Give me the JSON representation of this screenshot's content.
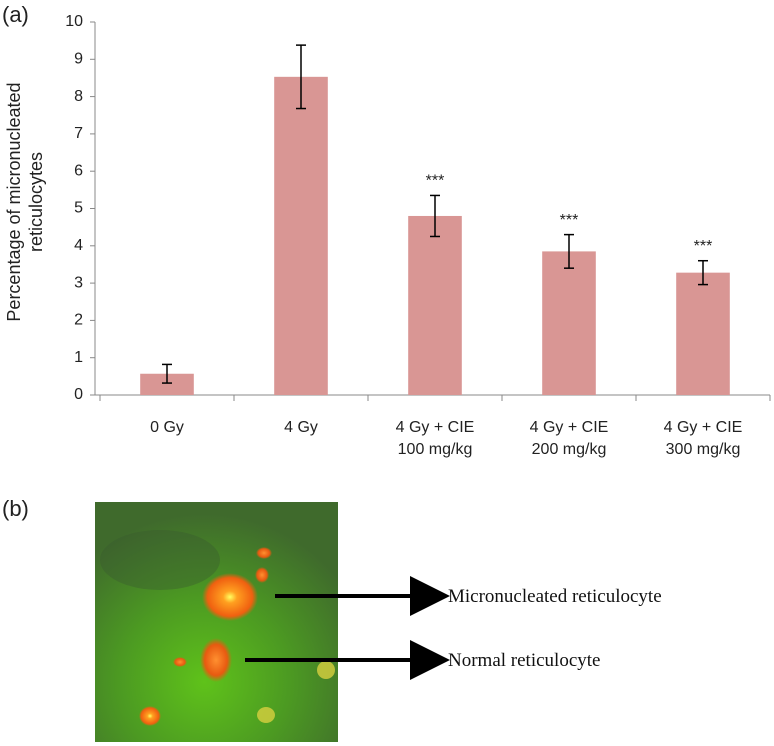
{
  "chart_data": {
    "type": "bar",
    "panel_label": "(a)",
    "ylabel": "Percentage of micronucleated\nreticulocytes",
    "categories": [
      "0 Gy",
      "4 Gy",
      "4 Gy + CIE\n100 mg/kg",
      "4 Gy + CIE\n200 mg/kg",
      "4 Gy + CIE\n300 mg/kg"
    ],
    "values": [
      0.57,
      8.53,
      4.8,
      3.85,
      3.28
    ],
    "errors": [
      0.25,
      0.85,
      0.55,
      0.45,
      0.32
    ],
    "significance": [
      null,
      null,
      "***",
      "***",
      "***"
    ],
    "color": "#d99694",
    "ylim": [
      0,
      10
    ],
    "yticks": [
      0,
      1,
      2,
      3,
      4,
      5,
      6,
      7,
      8,
      9,
      10
    ],
    "grid": false
  },
  "image_panel": {
    "panel_label": "(b)",
    "labels": [
      "Micronucleated reticulocyte",
      "Normal reticulocyte"
    ]
  }
}
